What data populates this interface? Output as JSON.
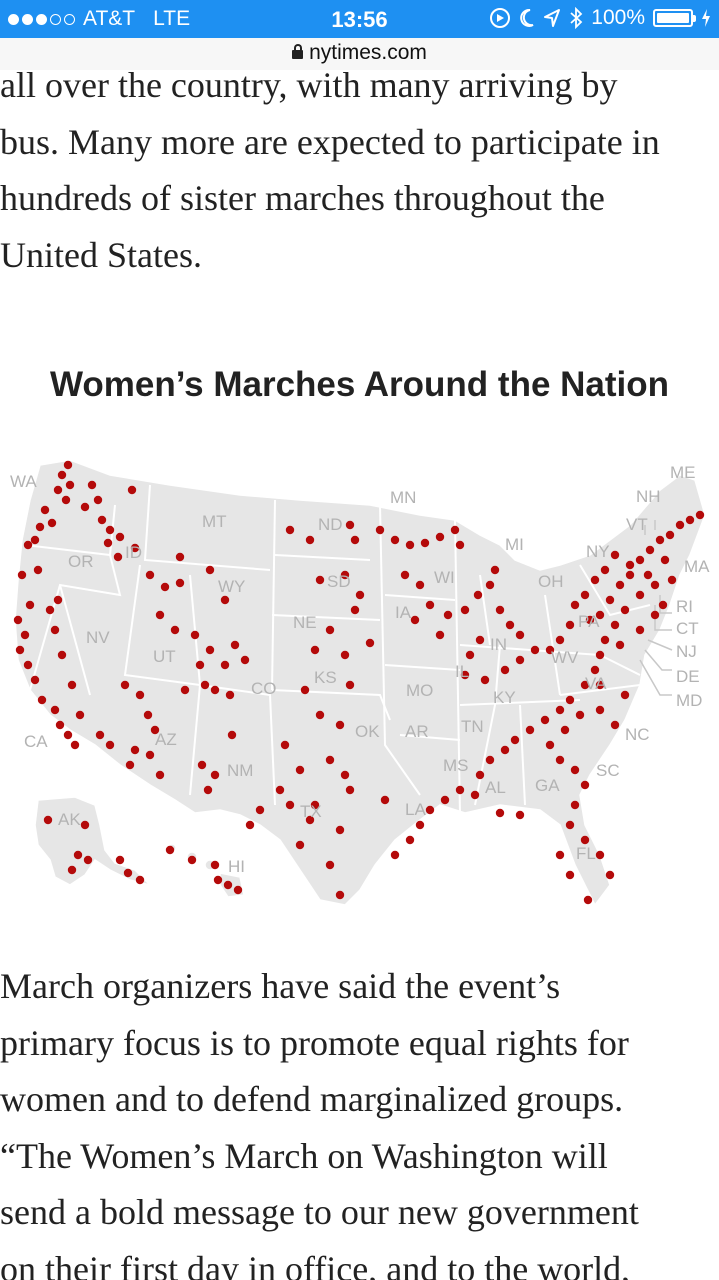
{
  "status_bar": {
    "carrier": "AT&T",
    "network": "LTE",
    "time": "13:56",
    "battery": "100%",
    "icons": [
      "signal-dots-icon",
      "screen-lock-rotation-icon",
      "moon-icon",
      "location-arrow-icon",
      "bluetooth-icon",
      "battery-icon",
      "charging-bolt-icon"
    ]
  },
  "url_bar": {
    "domain": "nytimes.com",
    "icon": "lock-icon"
  },
  "article": {
    "paragraph_top_lines": [
      "all over the country, with many arriving by",
      "bus. Many more are expected to participate in",
      "hundreds of sister marches throughout the",
      "United States."
    ],
    "paragraph_bottom_lines": [
      "March organizers have said the event’s",
      "primary focus is to promote equal rights for",
      "women and to defend marginalized groups.",
      "“The Women’s March on Washington will",
      "send a bold message to our new government",
      "on their first day in office, and to the world,"
    ]
  },
  "graphic": {
    "title": "Women’s Marches Around the Nation",
    "state_labels": [
      "WA",
      "OR",
      "CA",
      "NV",
      "ID",
      "MT",
      "WY",
      "UT",
      "AZ",
      "CO",
      "NM",
      "ND",
      "SD",
      "NE",
      "KS",
      "OK",
      "TX",
      "MN",
      "IA",
      "MO",
      "AR",
      "LA",
      "WI",
      "IL",
      "MI",
      "IN",
      "OH",
      "KY",
      "TN",
      "MS",
      "AL",
      "GA",
      "FL",
      "SC",
      "NC",
      "VA",
      "WV",
      "PA",
      "NY",
      "VT",
      "NH",
      "ME",
      "MA",
      "RI",
      "CT",
      "NJ",
      "DE",
      "MD",
      "AK",
      "HI"
    ],
    "colors": {
      "land": "#e6e6e6",
      "dot": "#b40a0a",
      "label": "#b3b3b3",
      "statusbar": "#1e90f2"
    }
  }
}
